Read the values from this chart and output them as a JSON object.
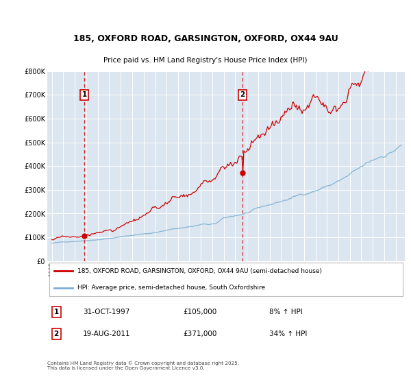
{
  "title_line1": "185, OXFORD ROAD, GARSINGTON, OXFORD, OX44 9AU",
  "title_line2": "Price paid vs. HM Land Registry's House Price Index (HPI)",
  "ylim": [
    0,
    800000
  ],
  "yticks": [
    0,
    100000,
    200000,
    300000,
    400000,
    500000,
    600000,
    700000,
    800000
  ],
  "ytick_labels": [
    "£0",
    "£100K",
    "£200K",
    "£300K",
    "£400K",
    "£500K",
    "£600K",
    "£700K",
    "£800K"
  ],
  "xlim_start": 1994.6,
  "xlim_end": 2025.8,
  "background_color": "#ffffff",
  "plot_bg_color": "#dce6f0",
  "grid_color": "#ffffff",
  "red_line_color": "#cc0000",
  "blue_line_color": "#7bafd4",
  "sale1_x": 1997.83,
  "sale1_y": 105000,
  "sale2_x": 2011.63,
  "sale2_y": 371000,
  "legend_line1": "185, OXFORD ROAD, GARSINGTON, OXFORD, OX44 9AU (semi-detached house)",
  "legend_line2": "HPI: Average price, semi-detached house, South Oxfordshire",
  "sale1_date": "31-OCT-1997",
  "sale1_price": "£105,000",
  "sale1_hpi": "8% ↑ HPI",
  "sale2_date": "19-AUG-2011",
  "sale2_price": "£371,000",
  "sale2_hpi": "34% ↑ HPI",
  "footer": "Contains HM Land Registry data © Crown copyright and database right 2025.\nThis data is licensed under the Open Government Licence v3.0."
}
